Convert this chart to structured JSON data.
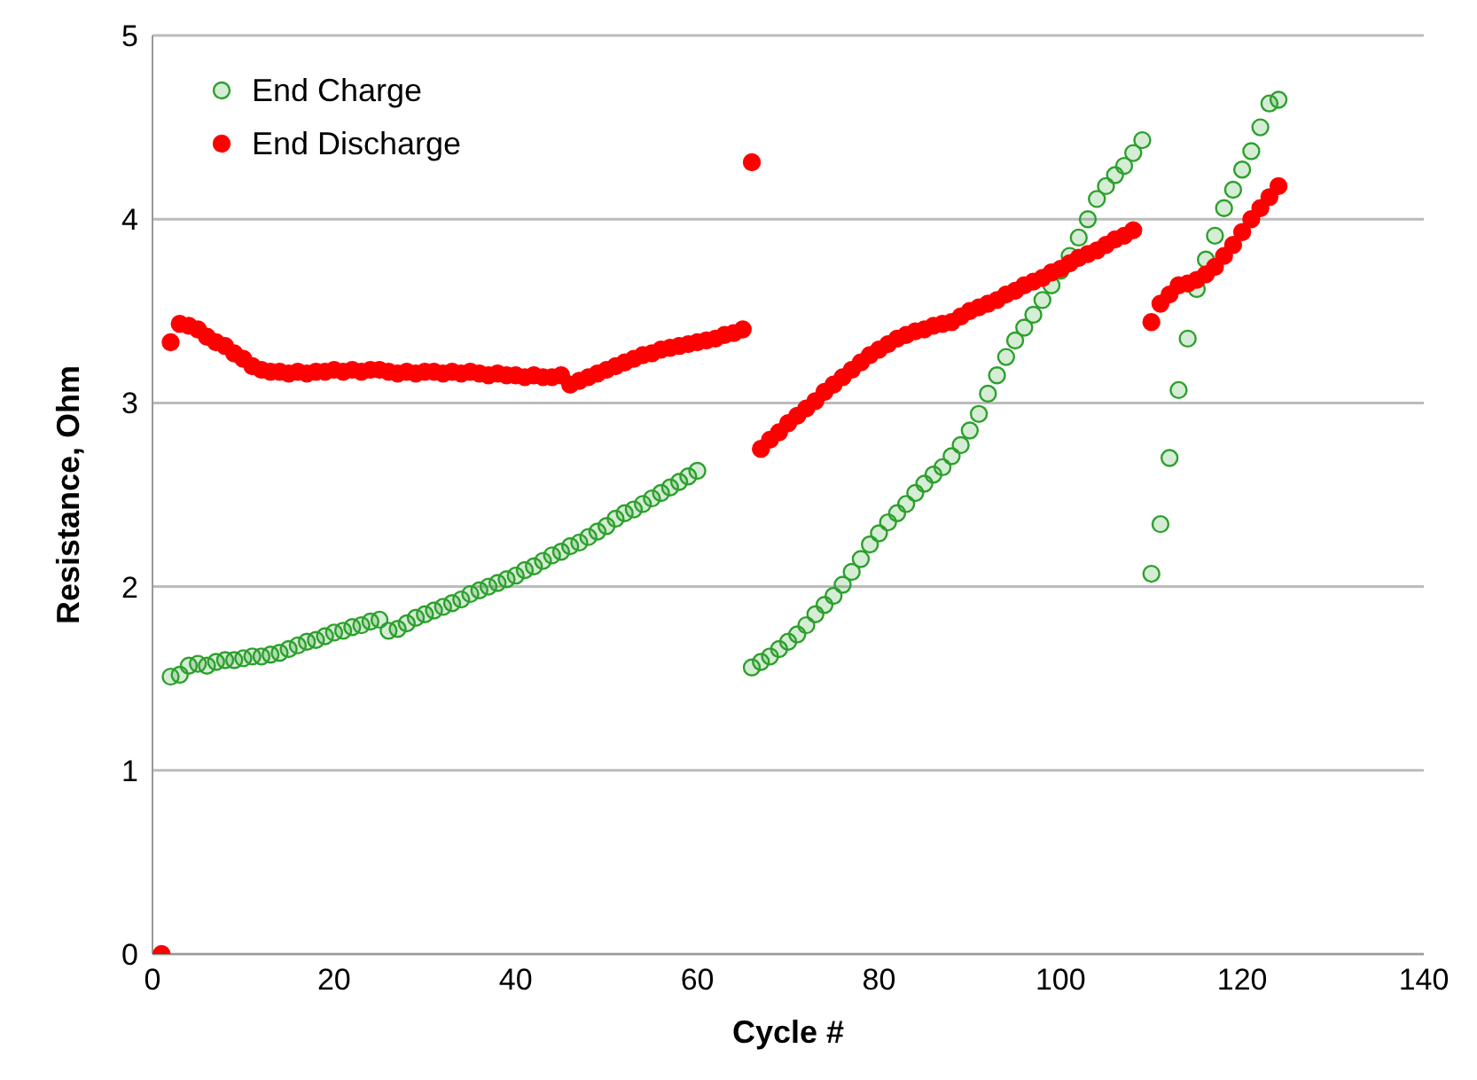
{
  "chart_data": {
    "type": "scatter",
    "xlabel": "Cycle #",
    "ylabel": "Resistance, Ohm",
    "xlim": [
      0,
      140
    ],
    "xticks": [
      0,
      20,
      40,
      60,
      80,
      100,
      120,
      140
    ],
    "ylim": [
      0,
      5
    ],
    "yticks": [
      0,
      1,
      2,
      3,
      4,
      5
    ],
    "grid": "y",
    "legend": "top left",
    "marker": "circle",
    "series": [
      {
        "name": "End Charge",
        "color": "#2ca02c",
        "x": [
          2,
          3,
          4,
          5,
          6,
          7,
          8,
          9,
          10,
          11,
          12,
          13,
          14,
          15,
          16,
          17,
          18,
          19,
          20,
          21,
          22,
          23,
          24,
          25,
          26,
          27,
          28,
          29,
          30,
          31,
          32,
          33,
          34,
          35,
          36,
          37,
          38,
          39,
          40,
          41,
          42,
          43,
          44,
          45,
          46,
          47,
          48,
          49,
          50,
          51,
          52,
          53,
          54,
          55,
          56,
          57,
          58,
          59,
          60,
          66,
          67,
          68,
          69,
          70,
          71,
          72,
          73,
          74,
          75,
          76,
          77,
          78,
          79,
          80,
          81,
          82,
          83,
          84,
          85,
          86,
          87,
          88,
          89,
          90,
          91,
          92,
          93,
          94,
          95,
          96,
          97,
          98,
          99,
          100,
          101,
          102,
          103,
          104,
          105,
          106,
          107,
          108,
          109,
          110,
          111,
          112,
          113,
          114,
          115,
          116,
          117,
          118,
          119,
          120,
          121,
          122,
          123,
          124
        ],
        "values": [
          1.51,
          1.52,
          1.57,
          1.58,
          1.57,
          1.59,
          1.6,
          1.6,
          1.61,
          1.62,
          1.62,
          1.63,
          1.64,
          1.66,
          1.68,
          1.7,
          1.71,
          1.73,
          1.75,
          1.76,
          1.78,
          1.79,
          1.81,
          1.82,
          1.76,
          1.77,
          1.8,
          1.83,
          1.85,
          1.87,
          1.89,
          1.91,
          1.93,
          1.96,
          1.98,
          2.0,
          2.02,
          2.04,
          2.06,
          2.09,
          2.11,
          2.14,
          2.17,
          2.19,
          2.22,
          2.24,
          2.27,
          2.3,
          2.33,
          2.37,
          2.4,
          2.42,
          2.45,
          2.48,
          2.51,
          2.54,
          2.57,
          2.6,
          2.63,
          1.56,
          1.59,
          1.62,
          1.66,
          1.7,
          1.74,
          1.79,
          1.85,
          1.9,
          1.95,
          2.01,
          2.08,
          2.15,
          2.23,
          2.29,
          2.35,
          2.4,
          2.45,
          2.51,
          2.56,
          2.61,
          2.65,
          2.71,
          2.77,
          2.85,
          2.94,
          3.05,
          3.15,
          3.25,
          3.34,
          3.41,
          3.48,
          3.56,
          3.64,
          3.72,
          3.8,
          3.9,
          4.0,
          4.11,
          4.18,
          4.24,
          4.29,
          4.36,
          4.43,
          2.07,
          2.34,
          2.7,
          3.07,
          3.35,
          3.62,
          3.78,
          3.91,
          4.06,
          4.16,
          4.27,
          4.37,
          4.5,
          4.63,
          4.65
        ]
      },
      {
        "name": "End Discharge",
        "color": "#ff0000",
        "x": [
          1,
          2,
          3,
          4,
          5,
          6,
          7,
          8,
          9,
          10,
          11,
          12,
          13,
          14,
          15,
          16,
          17,
          18,
          19,
          20,
          21,
          22,
          23,
          24,
          25,
          26,
          27,
          28,
          29,
          30,
          31,
          32,
          33,
          34,
          35,
          36,
          37,
          38,
          39,
          40,
          41,
          42,
          43,
          44,
          45,
          46,
          47,
          48,
          49,
          50,
          51,
          52,
          53,
          54,
          55,
          56,
          57,
          58,
          59,
          60,
          61,
          62,
          63,
          64,
          65,
          66,
          67,
          68,
          69,
          70,
          71,
          72,
          73,
          74,
          75,
          76,
          77,
          78,
          79,
          80,
          81,
          82,
          83,
          84,
          85,
          86,
          87,
          88,
          89,
          90,
          91,
          92,
          93,
          94,
          95,
          96,
          97,
          98,
          99,
          100,
          101,
          102,
          103,
          104,
          105,
          106,
          107,
          108,
          110,
          111,
          112,
          113,
          114,
          115,
          116,
          117,
          118,
          119,
          120,
          121,
          122,
          123,
          124
        ],
        "values": [
          0,
          3.33,
          3.43,
          3.42,
          3.4,
          3.36,
          3.33,
          3.31,
          3.27,
          3.24,
          3.2,
          3.18,
          3.17,
          3.17,
          3.16,
          3.17,
          3.16,
          3.17,
          3.17,
          3.18,
          3.17,
          3.18,
          3.17,
          3.18,
          3.18,
          3.17,
          3.16,
          3.17,
          3.16,
          3.17,
          3.17,
          3.16,
          3.17,
          3.16,
          3.17,
          3.16,
          3.15,
          3.16,
          3.15,
          3.15,
          3.14,
          3.15,
          3.14,
          3.14,
          3.15,
          3.1,
          3.12,
          3.14,
          3.16,
          3.18,
          3.2,
          3.22,
          3.24,
          3.26,
          3.27,
          3.29,
          3.3,
          3.31,
          3.32,
          3.33,
          3.34,
          3.35,
          3.37,
          3.38,
          3.4,
          4.31,
          2.75,
          2.8,
          2.84,
          2.89,
          2.93,
          2.97,
          3.01,
          3.06,
          3.1,
          3.14,
          3.18,
          3.22,
          3.26,
          3.29,
          3.32,
          3.35,
          3.37,
          3.39,
          3.4,
          3.42,
          3.43,
          3.44,
          3.47,
          3.5,
          3.52,
          3.54,
          3.56,
          3.59,
          3.61,
          3.64,
          3.66,
          3.68,
          3.71,
          3.73,
          3.76,
          3.79,
          3.81,
          3.83,
          3.86,
          3.89,
          3.91,
          3.94,
          3.44,
          3.54,
          3.59,
          3.64,
          3.65,
          3.67,
          3.7,
          3.74,
          3.8,
          3.86,
          3.93,
          4.0,
          4.06,
          4.12,
          4.18
        ]
      }
    ]
  }
}
